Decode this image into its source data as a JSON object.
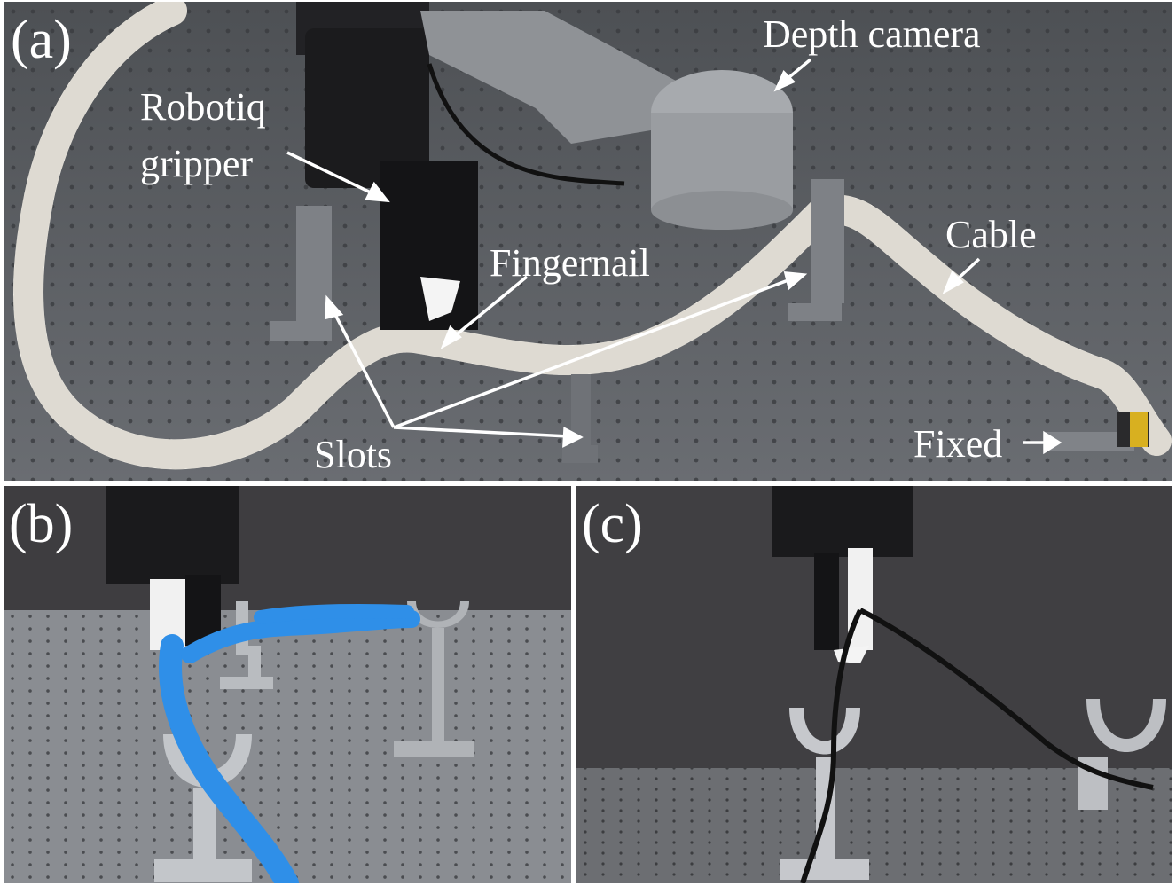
{
  "panels": {
    "a": {
      "label": "(a)",
      "annotations": {
        "gripper_line1": "Robotiq",
        "gripper_line2": "gripper",
        "depth_camera": "Depth camera",
        "fingernail": "Fingernail",
        "cable": "Cable",
        "slots": "Slots",
        "fixed": "Fixed"
      },
      "colors": {
        "rope": "#f2efe8",
        "table": "#5c5f63",
        "camera": "#9ea1a5",
        "gripper": "#1b1b1d"
      }
    },
    "b": {
      "label": "(b)",
      "colors": {
        "rope": "#2f8fe8",
        "slot": "#b9bcc0",
        "table": "#8a8d92"
      }
    },
    "c": {
      "label": "(c)",
      "colors": {
        "cable": "#111111",
        "slot": "#c6c8cc",
        "table": "#6c6e72"
      }
    }
  }
}
